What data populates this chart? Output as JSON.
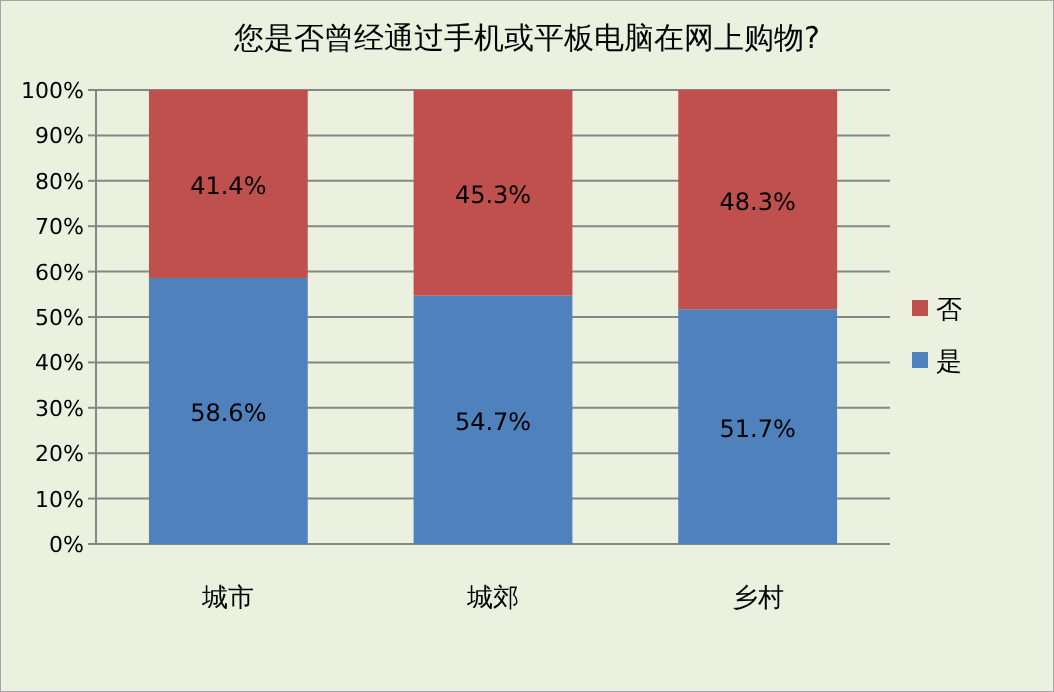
{
  "chart_data": {
    "type": "bar",
    "stacked": true,
    "title": "您是否曾经通过手机或平板电脑在网上购物?",
    "categories": [
      "城市",
      "城郊",
      "乡村"
    ],
    "series": [
      {
        "name": "是",
        "color": "#4f81bd",
        "values": [
          58.6,
          54.7,
          51.7
        ],
        "value_labels": [
          "58.6%",
          "54.7%",
          "51.7%"
        ]
      },
      {
        "name": "否",
        "color": "#c0504d",
        "values": [
          41.4,
          45.3,
          48.3
        ],
        "value_labels": [
          "41.4%",
          "45.3%",
          "48.3%"
        ]
      }
    ],
    "ylim": [
      0,
      100
    ],
    "yticks": [
      {
        "value": 0,
        "label": "0%"
      },
      {
        "value": 10,
        "label": "10%"
      },
      {
        "value": 20,
        "label": "20%"
      },
      {
        "value": 30,
        "label": "30%"
      },
      {
        "value": 40,
        "label": "40%"
      },
      {
        "value": 50,
        "label": "50%"
      },
      {
        "value": 60,
        "label": "60%"
      },
      {
        "value": 70,
        "label": "70%"
      },
      {
        "value": 80,
        "label": "80%"
      },
      {
        "value": 90,
        "label": "90%"
      },
      {
        "value": 100,
        "label": "100%"
      }
    ],
    "grid": "y",
    "legend": "right"
  }
}
